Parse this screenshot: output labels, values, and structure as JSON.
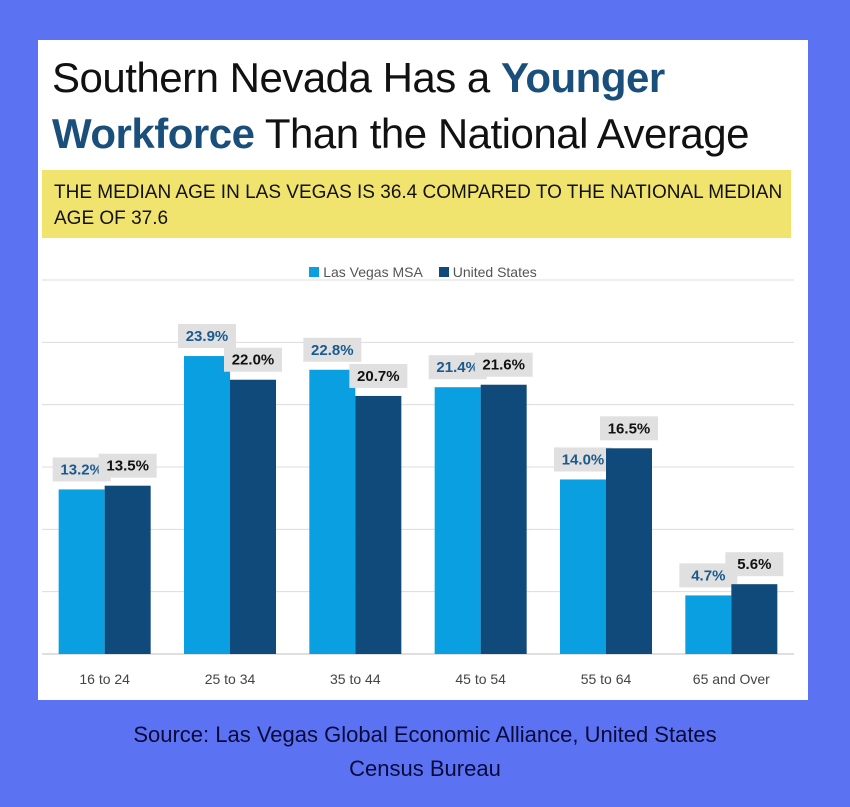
{
  "title": {
    "line1_pre": "Southern Nevada Has a ",
    "line1_highlight": "Younger",
    "line2_highlight": "Workforce",
    "line2_post": " Than the National Average"
  },
  "subtitle": "THE MEDIAN AGE IN LAS VEGAS IS 36.4 COMPARED TO THE NATIONAL MEDIAN AGE OF 37.6",
  "source": {
    "line1": "Source: Las Vegas Global Economic Alliance, United States",
    "line2": "Census Bureau"
  },
  "colors": {
    "background": "#5b73f2",
    "highlight_band": "#f1e46e",
    "title_accent": "#1a4f7c",
    "las_vegas": "#0a9fe0",
    "united_states": "#0f4a7a",
    "las_vegas_label": "#1b5a8e",
    "us_label": "#111111"
  },
  "chart_data": {
    "type": "bar",
    "categories": [
      "16 to 24",
      "25 to 34",
      "35 to 44",
      "45 to 54",
      "55 to 64",
      "65 and Over"
    ],
    "series": [
      {
        "name": "Las Vegas MSA",
        "values": [
          13.2,
          23.9,
          22.8,
          21.4,
          14.0,
          4.7
        ],
        "labels": [
          "13.2%",
          "23.9%",
          "22.8%",
          "21.4%",
          "14.0%",
          "4.7%"
        ]
      },
      {
        "name": "United States",
        "values": [
          13.5,
          22.0,
          20.7,
          21.6,
          16.5,
          5.6
        ],
        "labels": [
          "13.5%",
          "22.0%",
          "20.7%",
          "21.6%",
          "16.5%",
          "5.6%"
        ]
      }
    ],
    "ylim": [
      0,
      30
    ],
    "grid": true,
    "legend": "top-center"
  }
}
